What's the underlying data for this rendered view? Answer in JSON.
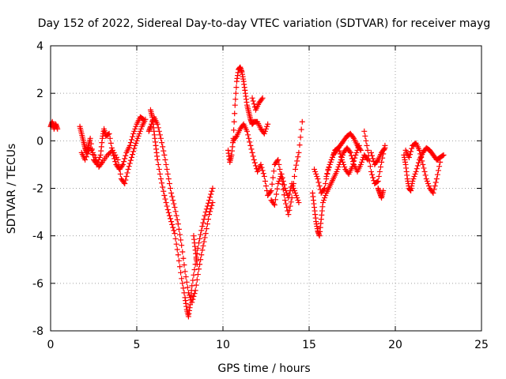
{
  "chart_data": {
    "type": "scatter",
    "title": "Day 152 of 2022, Sidereal Day-to-day VTEC variation (SDTVAR) for receiver mayg",
    "xlabel": "GPS time / hours",
    "ylabel": "SDTVAR / TECUs",
    "xlim": [
      0,
      25
    ],
    "ylim": [
      -8,
      4
    ],
    "xticks": [
      0,
      5,
      10,
      15,
      20,
      25
    ],
    "yticks": [
      -8,
      -6,
      -4,
      -2,
      0,
      2,
      4
    ],
    "grid": true,
    "marker": "+",
    "color": "#ff0000",
    "segments": [
      {
        "name": "s1",
        "x": [
          0.0,
          0.1,
          0.2,
          0.3,
          0.4
        ],
        "y": [
          0.6,
          0.8,
          0.5,
          0.7,
          0.5
        ]
      },
      {
        "name": "s2",
        "x": [
          1.7,
          1.8,
          1.9,
          2.0,
          2.1,
          2.2,
          2.3,
          2.5,
          2.7,
          2.9,
          3.0,
          3.1,
          3.2,
          3.4,
          3.6,
          3.8,
          4.0,
          4.2,
          4.4,
          4.6,
          4.8,
          5.0,
          5.2,
          5.4
        ],
        "y": [
          0.6,
          0.3,
          0.0,
          -0.3,
          -0.5,
          -0.2,
          0.1,
          -0.8,
          -1.0,
          -0.6,
          0.1,
          0.5,
          0.2,
          0.3,
          -0.5,
          -1.0,
          -1.2,
          -1.0,
          -0.5,
          -0.2,
          0.3,
          0.7,
          1.0,
          0.9
        ]
      },
      {
        "name": "s3",
        "x": [
          1.8,
          2.0,
          2.3,
          2.6,
          2.8,
          3.0,
          3.3,
          3.6,
          3.9,
          4.1,
          4.3,
          4.5,
          4.7,
          4.9,
          5.1,
          5.3,
          5.5
        ],
        "y": [
          -0.5,
          -0.8,
          -0.3,
          -0.7,
          -1.1,
          -0.9,
          -0.6,
          -0.4,
          -0.8,
          -1.6,
          -1.8,
          -1.2,
          -0.7,
          -0.2,
          0.2,
          0.6,
          0.9
        ]
      },
      {
        "name": "s4",
        "x": [
          5.8,
          5.9,
          6.0,
          6.1,
          6.2,
          6.4,
          6.6,
          6.8,
          7.0,
          7.2,
          7.4,
          7.6,
          7.8,
          7.9,
          8.0,
          8.1,
          8.2,
          8.4,
          8.6,
          8.8,
          9.0,
          9.2,
          9.4
        ],
        "y": [
          1.3,
          1.0,
          0.4,
          -0.2,
          -0.8,
          -1.6,
          -2.3,
          -2.9,
          -3.4,
          -3.9,
          -4.8,
          -5.8,
          -6.6,
          -7.1,
          -7.4,
          -6.9,
          -6.1,
          -5.2,
          -4.3,
          -3.6,
          -3.0,
          -2.5,
          -2.0
        ]
      },
      {
        "name": "s5",
        "x": [
          5.7,
          5.8,
          6.0,
          6.2,
          6.4,
          6.6,
          6.8,
          7.0,
          7.2,
          7.4,
          7.6,
          7.8,
          8.0,
          8.2,
          8.4,
          8.6,
          8.8,
          9.0,
          9.2,
          9.4
        ],
        "y": [
          0.4,
          0.6,
          1.0,
          0.7,
          0.1,
          -0.6,
          -1.4,
          -2.2,
          -2.8,
          -3.5,
          -4.4,
          -5.5,
          -6.4,
          -6.8,
          -6.3,
          -5.4,
          -4.6,
          -3.9,
          -3.1,
          -2.6
        ]
      },
      {
        "name": "s6",
        "x": [
          8.3,
          8.4,
          8.5
        ],
        "y": [
          -4.0,
          -4.6,
          -5.2
        ]
      },
      {
        "name": "s7",
        "x": [
          10.3,
          10.4,
          10.5,
          10.6,
          10.7,
          10.8,
          10.9,
          11.0,
          11.1,
          11.2,
          11.3,
          11.4,
          11.5,
          11.6,
          11.7,
          11.8,
          12.0,
          12.2,
          12.4,
          12.6
        ],
        "y": [
          -0.4,
          -0.9,
          -0.6,
          0.1,
          1.5,
          2.5,
          3.0,
          3.1,
          2.9,
          2.5,
          2.0,
          1.5,
          1.2,
          0.9,
          0.7,
          0.8,
          0.8,
          0.5,
          0.3,
          0.7
        ]
      },
      {
        "name": "s8",
        "x": [
          10.6,
          10.8,
          11.0,
          11.2,
          11.4,
          11.6,
          11.8,
          12.0,
          12.2,
          12.4,
          12.6,
          12.8,
          13.0,
          13.2,
          13.4,
          13.6,
          13.8,
          14.0,
          14.2,
          14.4,
          14.6
        ],
        "y": [
          0.0,
          0.2,
          0.5,
          0.7,
          0.4,
          -0.2,
          -0.8,
          -1.3,
          -1.0,
          -1.5,
          -2.3,
          -2.1,
          -1.0,
          -0.8,
          -1.6,
          -2.5,
          -3.1,
          -2.4,
          -1.2,
          -0.5,
          0.8
        ]
      },
      {
        "name": "s9",
        "x": [
          11.7,
          11.9,
          12.1,
          12.3
        ],
        "y": [
          1.8,
          1.3,
          1.6,
          1.8
        ]
      },
      {
        "name": "s10",
        "x": [
          12.8,
          13.0,
          13.2,
          13.4,
          13.6,
          13.8,
          14.0,
          14.2,
          14.4
        ],
        "y": [
          -2.5,
          -2.7,
          -1.8,
          -1.4,
          -2.0,
          -2.4,
          -1.8,
          -2.2,
          -2.6
        ]
      },
      {
        "name": "s11",
        "x": [
          15.2,
          15.3,
          15.4,
          15.5,
          15.6,
          15.7,
          15.8,
          16.0,
          16.2,
          16.4,
          16.6,
          16.8,
          17.0,
          17.2,
          17.4,
          17.6,
          17.8,
          18.0,
          18.2,
          18.4
        ],
        "y": [
          -2.2,
          -2.8,
          -3.4,
          -3.8,
          -4.0,
          -3.3,
          -2.6,
          -2.2,
          -1.9,
          -1.6,
          -1.3,
          -0.9,
          -0.5,
          -0.3,
          -0.5,
          -1.0,
          -1.3,
          -1.0,
          -0.6,
          -0.8
        ]
      },
      {
        "name": "s12",
        "x": [
          15.3,
          15.5,
          15.7,
          15.9,
          16.1,
          16.3,
          16.5,
          16.7,
          16.9,
          17.1,
          17.3,
          17.5,
          17.7,
          17.9
        ],
        "y": [
          -1.2,
          -1.6,
          -2.2,
          -2.0,
          -1.2,
          -0.8,
          -0.4,
          -0.3,
          -0.8,
          -1.2,
          -1.4,
          -1.1,
          -0.6,
          -0.2
        ]
      },
      {
        "name": "s13",
        "x": [
          16.0,
          16.2,
          16.4,
          16.6,
          16.8,
          17.0,
          17.2,
          17.4,
          17.6,
          17.8,
          18.0
        ],
        "y": [
          -1.5,
          -1.0,
          -0.6,
          -0.4,
          -0.2,
          0.0,
          0.2,
          0.3,
          0.1,
          -0.2,
          -0.4
        ]
      },
      {
        "name": "s14",
        "x": [
          18.2,
          18.4,
          18.6,
          18.8,
          19.0,
          19.2,
          19.4
        ],
        "y": [
          0.4,
          -0.4,
          -1.3,
          -1.8,
          -1.7,
          -0.9,
          -0.2
        ]
      },
      {
        "name": "s15",
        "x": [
          18.6,
          18.8,
          19.0,
          19.2,
          19.4
        ],
        "y": [
          -0.5,
          -1.0,
          -0.8,
          -0.5,
          -0.3
        ]
      },
      {
        "name": "s16",
        "x": [
          19.0,
          19.1,
          19.2,
          19.3
        ],
        "y": [
          -2.0,
          -2.2,
          -2.4,
          -2.1
        ]
      },
      {
        "name": "s17",
        "x": [
          20.5,
          20.6,
          20.7,
          20.8,
          20.9,
          21.0,
          21.2,
          21.4,
          21.6,
          21.8,
          22.0,
          22.2,
          22.4,
          22.6,
          22.8
        ],
        "y": [
          -0.6,
          -1.0,
          -1.6,
          -2.0,
          -2.1,
          -1.7,
          -1.3,
          -0.8,
          -0.5,
          -0.3,
          -0.4,
          -0.6,
          -0.8,
          -0.7,
          -0.6
        ]
      },
      {
        "name": "s18",
        "x": [
          20.6,
          20.8,
          21.0,
          21.2,
          21.4,
          21.6,
          21.8,
          22.0,
          22.2,
          22.4,
          22.6
        ],
        "y": [
          -0.4,
          -0.7,
          -0.2,
          -0.1,
          -0.4,
          -1.0,
          -1.6,
          -2.0,
          -2.2,
          -1.6,
          -0.9
        ]
      }
    ]
  }
}
